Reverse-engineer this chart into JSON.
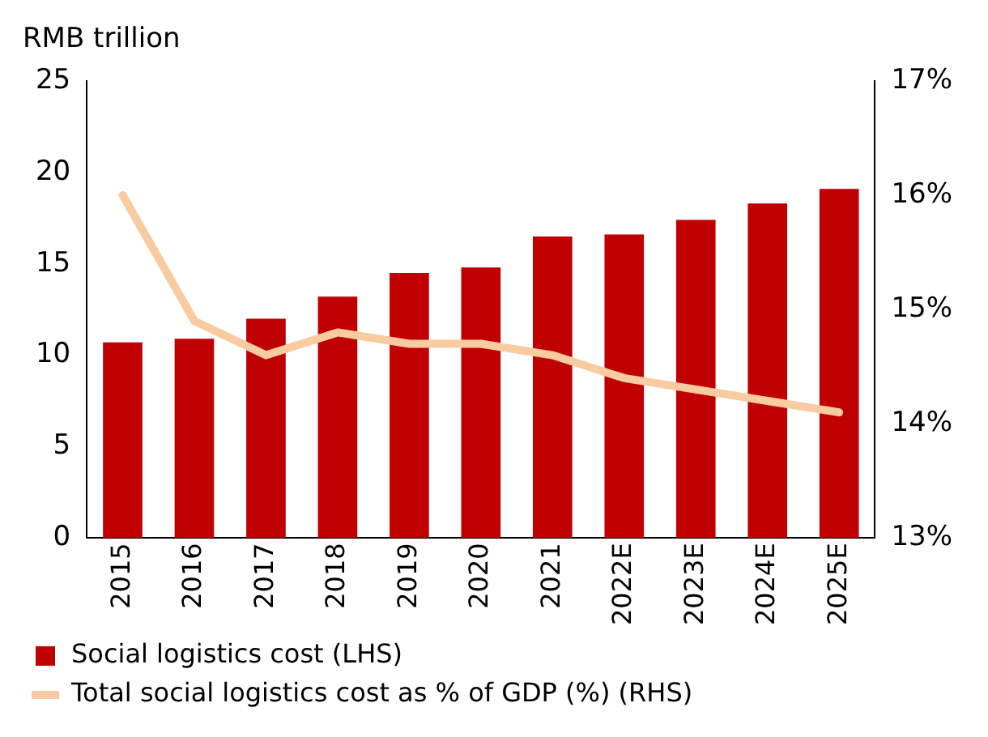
{
  "chart_data": {
    "type": "bar",
    "ylabel": "RMB trillion",
    "categories": [
      "2015",
      "2016",
      "2017",
      "2018",
      "2019",
      "2020",
      "2021",
      "2022E",
      "2023E",
      "2024E",
      "2025E"
    ],
    "series": [
      {
        "name": "Social logistics cost (LHS)",
        "color": "#c00000",
        "values": [
          10.7,
          10.9,
          12.0,
          13.2,
          14.5,
          14.8,
          16.5,
          16.6,
          17.4,
          18.3,
          19.1
        ]
      },
      {
        "name": "Total social logistics cost as % of GDP (%) (RHS)",
        "type": "line",
        "axis": "y2",
        "color": "#f8cba0",
        "values": [
          16.0,
          14.9,
          14.6,
          14.8,
          14.7,
          14.7,
          14.6,
          14.4,
          14.3,
          14.2,
          14.1
        ]
      }
    ],
    "ylim": [
      0,
      25
    ],
    "yticks": [
      0,
      5,
      10,
      15,
      20,
      25
    ],
    "y2lim": [
      13,
      17
    ],
    "y2ticks": [
      {
        "value": 13,
        "label": "13%"
      },
      {
        "value": 14,
        "label": "14%"
      },
      {
        "value": 15,
        "label": "15%"
      },
      {
        "value": 16,
        "label": "16%"
      },
      {
        "value": 17,
        "label": "17%"
      }
    ],
    "grid": false,
    "legend": "bottom",
    "marker": "none",
    "line_style": "solid"
  }
}
